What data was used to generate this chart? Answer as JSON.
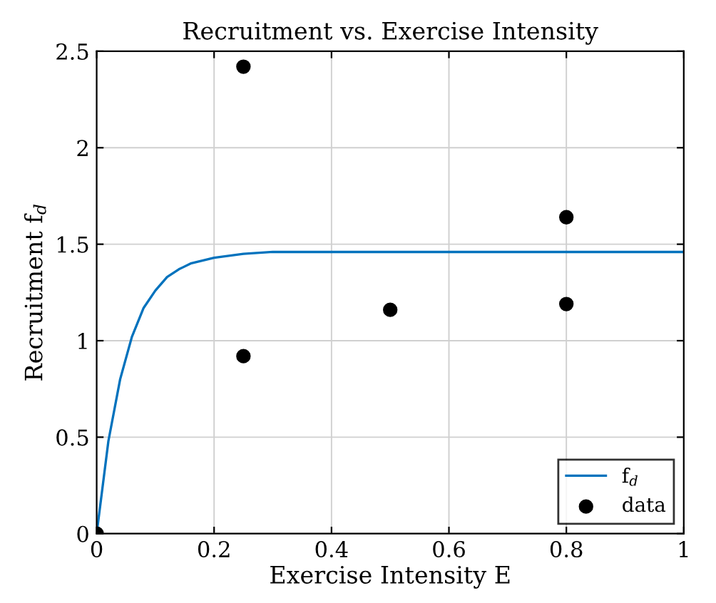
{
  "chart_data": {
    "type": "line",
    "title": "Recruitment vs. Exercise Intensity",
    "xlabel": "Exercise Intensity E",
    "ylabel": "Recruitment f$_{d}$",
    "xlim": [
      0,
      1
    ],
    "ylim": [
      0,
      2.5
    ],
    "xticks": [
      0,
      0.2,
      0.4,
      0.6,
      0.8,
      1
    ],
    "yticks": [
      0,
      0.5,
      1,
      1.5,
      2,
      2.5
    ],
    "grid": true,
    "legend": "bottom right",
    "series": [
      {
        "name": "f$_{d}$",
        "color": "#0072bd",
        "marker": "none",
        "line_style": "solid",
        "x": [
          0,
          0.02,
          0.04,
          0.06,
          0.08,
          0.1,
          0.12,
          0.14,
          0.16,
          0.2,
          0.25,
          0.3,
          0.4,
          0.6,
          1.0
        ],
        "values": [
          0,
          0.48,
          0.8,
          1.02,
          1.17,
          1.26,
          1.33,
          1.37,
          1.4,
          1.43,
          1.45,
          1.46,
          1.46,
          1.46,
          1.46
        ]
      },
      {
        "name": "data",
        "type": "scatter",
        "color": "#000000",
        "marker": "circle",
        "x": [
          0,
          0.25,
          0.25,
          0.5,
          0.8,
          0.8
        ],
        "values": [
          0,
          2.42,
          0.92,
          1.16,
          1.64,
          1.19
        ]
      }
    ]
  }
}
